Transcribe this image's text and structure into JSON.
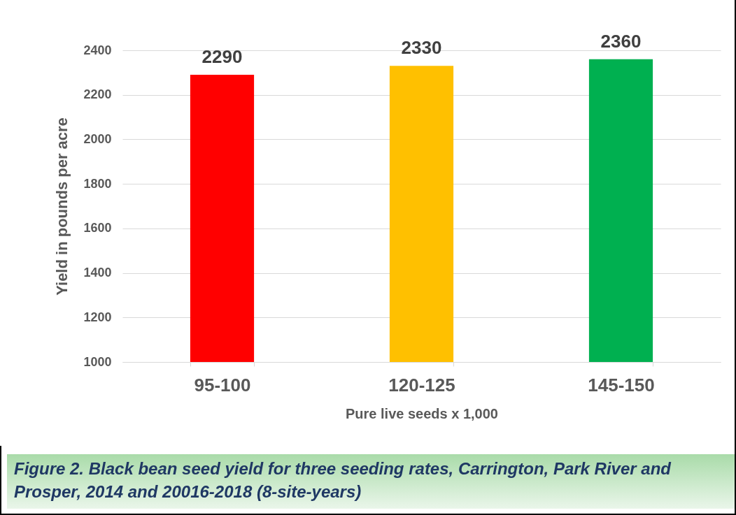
{
  "chart_data": {
    "type": "bar",
    "xlabel": "Pure live seeds x 1,000",
    "ylabel": "Yield in pounds per acre",
    "categories": [
      "95-100",
      "120-125",
      "145-150"
    ],
    "values": [
      2290,
      2330,
      2360
    ],
    "colors": [
      "#ff0000",
      "#ffc000",
      "#00b050"
    ],
    "ylim": [
      1000,
      2400
    ],
    "yticks": [
      1000,
      1200,
      1400,
      1600,
      1800,
      2000,
      2200,
      2400
    ],
    "grid": "y",
    "data_labels": true,
    "annotations": [
      "Figure 2. Black bean seed yield for three seeding rates, Carrington, Park River and Prosper, 2014 and 20016-2018 (8-site-years)"
    ]
  }
}
